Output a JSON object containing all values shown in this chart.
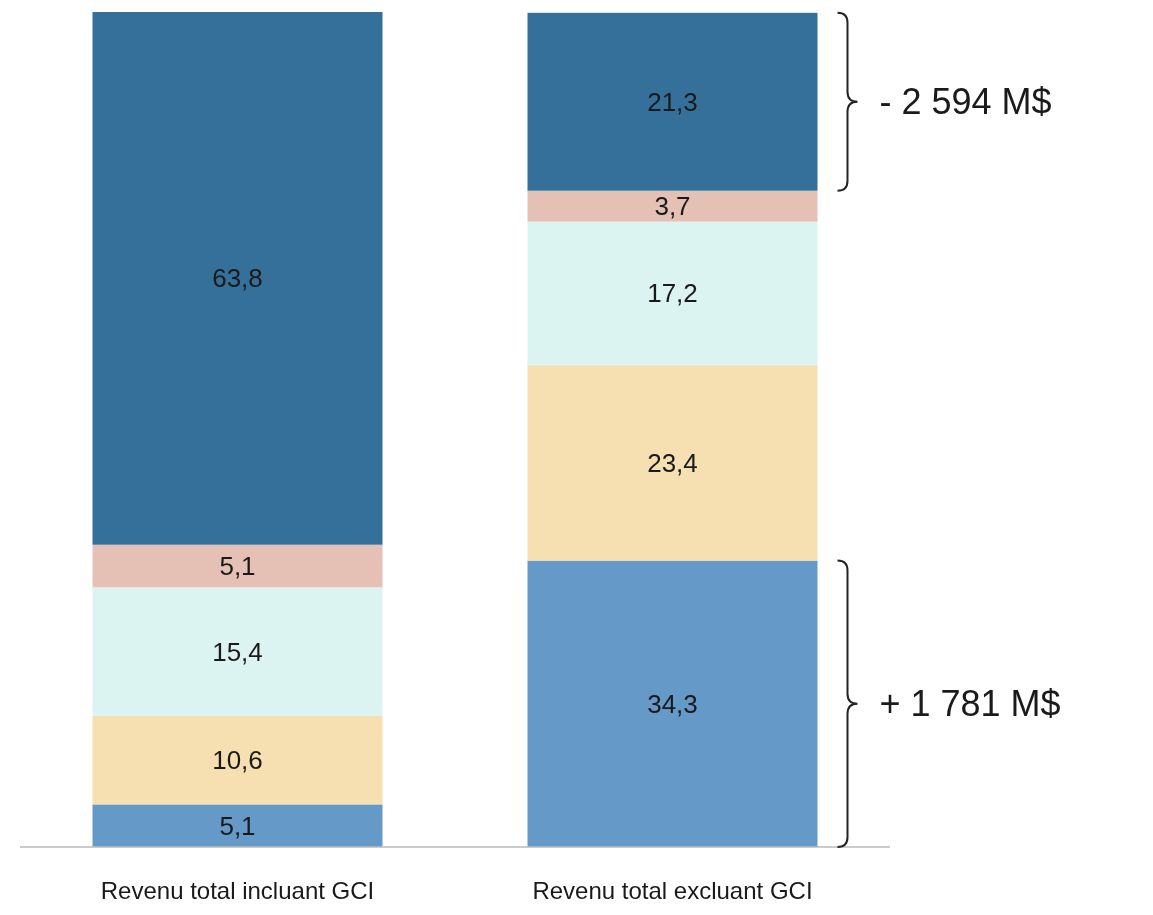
{
  "chart_data": {
    "type": "bar",
    "stacked": true,
    "categories": [
      "Revenu total incluant GCI",
      "Revenu total excluant GCI"
    ],
    "ylim": [
      0,
      100
    ],
    "tick_labels": "x",
    "series": [
      {
        "color": "#6499c8",
        "values": [
          5.1,
          34.3
        ],
        "value_labels": [
          "5,1",
          "34,3"
        ]
      },
      {
        "color": "#f6e0b2",
        "values": [
          10.6,
          23.4
        ],
        "value_labels": [
          "10,6",
          "23,4"
        ]
      },
      {
        "color": "#dcf4f1",
        "values": [
          15.4,
          17.2
        ],
        "value_labels": [
          "15,4",
          "17,2"
        ]
      },
      {
        "color": "#e5c1b5",
        "values": [
          5.1,
          3.7
        ],
        "value_labels": [
          "5,1",
          "3,7"
        ]
      },
      {
        "color": "#35709b",
        "values": [
          63.8,
          21.3
        ],
        "value_labels": [
          "63,8",
          "21,3"
        ]
      }
    ],
    "annotations": [
      "- 2 594 M$",
      "+ 1 781 M$"
    ]
  }
}
